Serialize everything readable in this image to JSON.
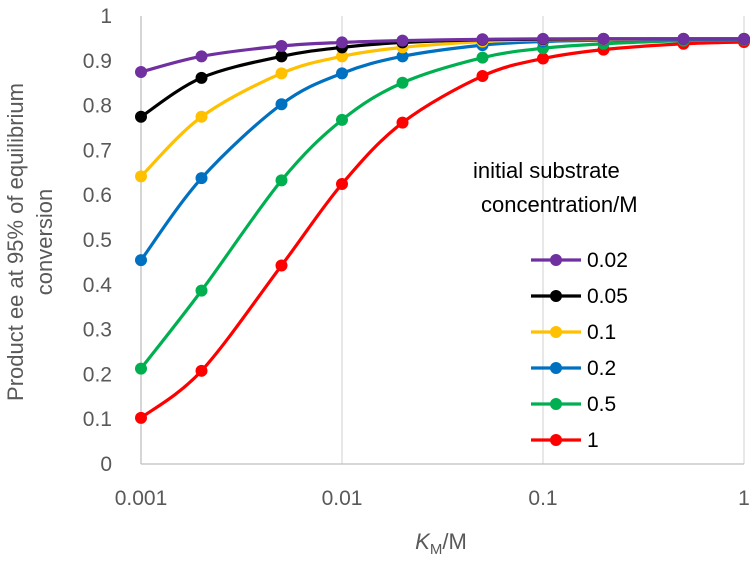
{
  "chart_data": {
    "type": "line",
    "x_scale": "log",
    "title": "",
    "xlabel": {
      "italic": "K",
      "subscript": "M",
      "suffix": "/M"
    },
    "ylabel_lines": [
      "Product ee at 95% of equilibrium",
      "conversion"
    ],
    "xlim": [
      0.001,
      1
    ],
    "ylim": [
      0,
      1
    ],
    "x_ticks": [
      0.001,
      0.01,
      0.1,
      1
    ],
    "x_tick_labels": [
      "0.001",
      "0.01",
      "0.1",
      "1"
    ],
    "y_ticks": [
      0,
      0.1,
      0.2,
      0.3,
      0.4,
      0.5,
      0.6,
      0.7,
      0.8,
      0.9,
      1
    ],
    "y_tick_labels": [
      "0",
      "0.1",
      "0.2",
      "0.3",
      "0.4",
      "0.5",
      "0.6",
      "0.7",
      "0.8",
      "0.9",
      "1"
    ],
    "grid": "vertical",
    "legend_position": "right",
    "legend_title_lines": [
      "initial substrate",
      "concentration/M"
    ],
    "x": [
      0.001,
      0.002,
      0.005,
      0.01,
      0.02,
      0.05,
      0.1,
      0.2,
      0.5,
      1
    ],
    "series": [
      {
        "name": "0.02",
        "color": "#7030A0",
        "values": [
          0.875,
          0.91,
          0.933,
          0.941,
          0.945,
          0.948,
          0.949,
          0.949,
          0.949,
          0.949
        ]
      },
      {
        "name": "0.05",
        "color": "#000000",
        "values": [
          0.775,
          0.862,
          0.91,
          0.93,
          0.941,
          0.947,
          0.948,
          0.949,
          0.949,
          0.949
        ]
      },
      {
        "name": "0.1",
        "color": "#FFC000",
        "values": [
          0.642,
          0.775,
          0.872,
          0.91,
          0.93,
          0.943,
          0.947,
          0.948,
          0.949,
          0.949
        ]
      },
      {
        "name": "0.2",
        "color": "#0070C0",
        "values": [
          0.455,
          0.638,
          0.803,
          0.872,
          0.91,
          0.935,
          0.943,
          0.946,
          0.948,
          0.948
        ]
      },
      {
        "name": "0.5",
        "color": "#00B050",
        "values": [
          0.213,
          0.387,
          0.633,
          0.768,
          0.851,
          0.907,
          0.928,
          0.938,
          0.945,
          0.947
        ]
      },
      {
        "name": "1",
        "color": "#FF0000",
        "values": [
          0.103,
          0.208,
          0.443,
          0.625,
          0.762,
          0.866,
          0.905,
          0.925,
          0.938,
          0.942
        ]
      }
    ]
  }
}
